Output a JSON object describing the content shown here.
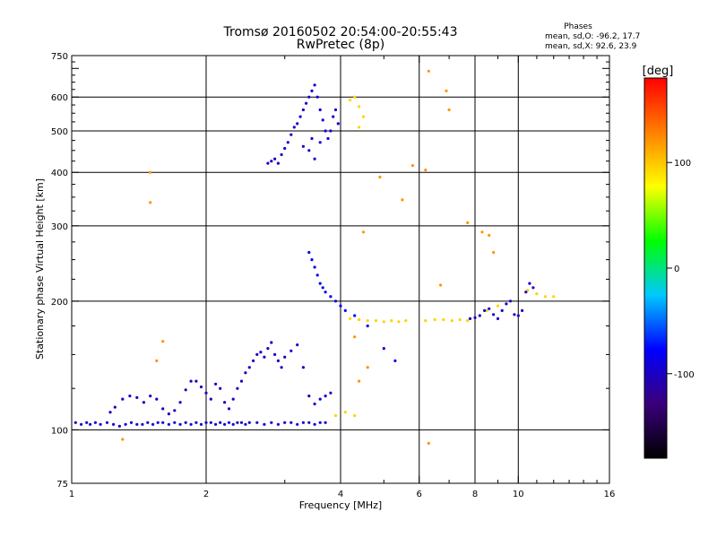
{
  "chart_data": {
    "type": "scatter",
    "title": "Tromsø 20160502 20:54:00-20:55:43",
    "subtitle": "RwPretec (8p)",
    "stats_title": "Phases",
    "stats": [
      "mean, sd,O: -96.2, 17.7",
      "mean, sd,X:  92.6, 23.9"
    ],
    "xlabel": "Frequency [MHz]",
    "ylabel": "Stationary phase Virtual Height [km]",
    "x_scale": "log",
    "y_scale": "log",
    "xlim": [
      1,
      16
    ],
    "ylim": [
      75,
      750
    ],
    "x_ticks": [
      1,
      2,
      4,
      6,
      8,
      10,
      16
    ],
    "x_tick_labels": [
      "1",
      "2",
      "4",
      "6",
      "8",
      "10",
      "16"
    ],
    "y_ticks": [
      75,
      100,
      200,
      300,
      400,
      500,
      600,
      750
    ],
    "y_tick_labels": [
      "75",
      "100",
      "200",
      "300",
      "400",
      "500",
      "600",
      "750"
    ],
    "x_gridlines": [
      2,
      4,
      6,
      8,
      10
    ],
    "y_gridlines": [
      100,
      200,
      300,
      400,
      500,
      600
    ],
    "grid": true,
    "colorbar": {
      "label": "[deg]",
      "range": [
        -180,
        180
      ],
      "ticks": [
        100,
        0,
        -100
      ],
      "tick_labels": [
        "100",
        "0",
        "-100"
      ],
      "colors": [
        "#000000",
        "#3a007a",
        "#0000ff",
        "#00c8ff",
        "#00ff00",
        "#ffff00",
        "#ff8000",
        "#ff0000"
      ]
    },
    "series": [
      {
        "phase_deg": -96,
        "points": [
          [
            1.02,
            104
          ],
          [
            1.05,
            103
          ],
          [
            1.08,
            104
          ],
          [
            1.1,
            103
          ],
          [
            1.13,
            104
          ],
          [
            1.16,
            103
          ],
          [
            1.2,
            104
          ],
          [
            1.24,
            103
          ],
          [
            1.28,
            102
          ],
          [
            1.32,
            103
          ],
          [
            1.36,
            104
          ],
          [
            1.4,
            103
          ],
          [
            1.44,
            103
          ],
          [
            1.48,
            104
          ],
          [
            1.52,
            103
          ],
          [
            1.56,
            104
          ],
          [
            1.6,
            104
          ],
          [
            1.65,
            103
          ],
          [
            1.7,
            104
          ],
          [
            1.75,
            103
          ],
          [
            1.8,
            104
          ],
          [
            1.85,
            103
          ],
          [
            1.9,
            104
          ],
          [
            1.95,
            103
          ],
          [
            2.0,
            104
          ],
          [
            2.05,
            104
          ],
          [
            2.1,
            103
          ],
          [
            2.15,
            104
          ],
          [
            2.2,
            103
          ],
          [
            2.25,
            104
          ],
          [
            2.3,
            103
          ],
          [
            2.35,
            104
          ],
          [
            2.4,
            104
          ],
          [
            2.45,
            103
          ],
          [
            2.5,
            104
          ],
          [
            2.6,
            104
          ],
          [
            2.7,
            103
          ],
          [
            2.8,
            104
          ],
          [
            2.9,
            103
          ],
          [
            3.0,
            104
          ],
          [
            3.1,
            104
          ],
          [
            3.2,
            103
          ],
          [
            3.3,
            104
          ],
          [
            3.4,
            104
          ],
          [
            3.5,
            103
          ],
          [
            3.6,
            104
          ],
          [
            3.7,
            104
          ]
        ]
      },
      {
        "phase_deg": -100,
        "points": [
          [
            1.22,
            110
          ],
          [
            1.25,
            113
          ],
          [
            1.3,
            118
          ],
          [
            1.35,
            120
          ],
          [
            1.4,
            119
          ],
          [
            1.45,
            116
          ],
          [
            1.5,
            120
          ],
          [
            1.55,
            118
          ],
          [
            1.6,
            112
          ],
          [
            1.65,
            109
          ],
          [
            1.7,
            111
          ],
          [
            1.75,
            116
          ],
          [
            1.8,
            124
          ],
          [
            1.85,
            130
          ],
          [
            1.9,
            130
          ],
          [
            1.95,
            126
          ],
          [
            2.0,
            122
          ],
          [
            2.05,
            118
          ],
          [
            2.1,
            128
          ],
          [
            2.15,
            125
          ],
          [
            2.2,
            116
          ],
          [
            2.25,
            112
          ],
          [
            2.3,
            118
          ],
          [
            2.35,
            125
          ],
          [
            2.4,
            130
          ],
          [
            2.45,
            136
          ],
          [
            2.5,
            140
          ],
          [
            2.55,
            145
          ],
          [
            2.6,
            150
          ],
          [
            2.65,
            152
          ],
          [
            2.7,
            148
          ],
          [
            2.75,
            155
          ],
          [
            2.8,
            160
          ],
          [
            2.85,
            150
          ],
          [
            2.9,
            145
          ],
          [
            2.95,
            140
          ],
          [
            3.0,
            148
          ],
          [
            3.1,
            153
          ],
          [
            3.2,
            158
          ],
          [
            3.3,
            140
          ],
          [
            3.4,
            120
          ],
          [
            3.5,
            115
          ],
          [
            3.6,
            118
          ],
          [
            3.7,
            120
          ],
          [
            3.8,
            122
          ]
        ]
      },
      {
        "phase_deg": -95,
        "points": [
          [
            2.75,
            420
          ],
          [
            2.8,
            425
          ],
          [
            2.85,
            430
          ],
          [
            2.9,
            420
          ],
          [
            2.95,
            440
          ],
          [
            3.0,
            455
          ],
          [
            3.05,
            470
          ],
          [
            3.1,
            490
          ],
          [
            3.15,
            510
          ],
          [
            3.2,
            520
          ],
          [
            3.25,
            540
          ],
          [
            3.3,
            560
          ],
          [
            3.35,
            580
          ],
          [
            3.4,
            600
          ],
          [
            3.45,
            620
          ],
          [
            3.5,
            640
          ],
          [
            3.55,
            600
          ],
          [
            3.6,
            560
          ],
          [
            3.65,
            530
          ],
          [
            3.7,
            500
          ],
          [
            3.75,
            480
          ],
          [
            3.8,
            500
          ],
          [
            3.85,
            540
          ],
          [
            3.9,
            560
          ],
          [
            3.95,
            520
          ],
          [
            3.3,
            460
          ],
          [
            3.4,
            450
          ],
          [
            3.5,
            430
          ],
          [
            3.45,
            480
          ],
          [
            3.6,
            470
          ]
        ]
      },
      {
        "phase_deg": -80,
        "points": [
          [
            3.4,
            260
          ],
          [
            3.45,
            250
          ],
          [
            3.5,
            240
          ],
          [
            3.55,
            230
          ],
          [
            3.6,
            220
          ],
          [
            3.65,
            215
          ],
          [
            3.7,
            210
          ],
          [
            3.8,
            205
          ],
          [
            3.9,
            200
          ],
          [
            4.0,
            195
          ],
          [
            4.1,
            190
          ],
          [
            4.3,
            185
          ],
          [
            4.6,
            175
          ],
          [
            5.0,
            155
          ],
          [
            5.3,
            145
          ]
        ]
      },
      {
        "phase_deg": 95,
        "points": [
          [
            4.2,
            182
          ],
          [
            4.4,
            181
          ],
          [
            4.6,
            180
          ],
          [
            4.8,
            180
          ],
          [
            5.0,
            179
          ],
          [
            5.2,
            180
          ],
          [
            5.4,
            179
          ],
          [
            5.6,
            180
          ],
          [
            6.2,
            180
          ],
          [
            6.5,
            181
          ],
          [
            6.8,
            181
          ],
          [
            7.1,
            180
          ],
          [
            7.4,
            181
          ],
          [
            7.7,
            180
          ],
          [
            8.5,
            190
          ],
          [
            9.0,
            195
          ],
          [
            10.5,
            212
          ],
          [
            11.0,
            208
          ],
          [
            11.5,
            205
          ],
          [
            12.0,
            205
          ],
          [
            4.2,
            590
          ],
          [
            4.3,
            600
          ],
          [
            4.4,
            570
          ],
          [
            4.5,
            540
          ],
          [
            4.4,
            510
          ],
          [
            3.9,
            108
          ],
          [
            4.1,
            110
          ],
          [
            4.3,
            108
          ]
        ]
      },
      {
        "phase_deg": -100,
        "points": [
          [
            7.8,
            182
          ],
          [
            8.0,
            183
          ],
          [
            8.2,
            185
          ],
          [
            8.4,
            190
          ],
          [
            8.6,
            192
          ],
          [
            8.8,
            186
          ],
          [
            9.0,
            182
          ],
          [
            9.2,
            190
          ],
          [
            9.4,
            197
          ],
          [
            9.6,
            200
          ],
          [
            9.8,
            186
          ],
          [
            10.0,
            185
          ],
          [
            10.2,
            190
          ],
          [
            10.4,
            210
          ],
          [
            10.6,
            220
          ],
          [
            10.8,
            215
          ]
        ]
      },
      {
        "phase_deg": 120,
        "points": [
          [
            4.9,
            390
          ],
          [
            5.5,
            345
          ],
          [
            5.8,
            415
          ],
          [
            6.2,
            405
          ],
          [
            6.3,
            690
          ],
          [
            6.9,
            620
          ],
          [
            7.0,
            560
          ],
          [
            7.7,
            305
          ],
          [
            8.3,
            290
          ],
          [
            8.6,
            285
          ],
          [
            8.8,
            260
          ],
          [
            6.7,
            218
          ],
          [
            4.5,
            290
          ],
          [
            4.3,
            165
          ],
          [
            4.4,
            130
          ],
          [
            4.6,
            140
          ],
          [
            6.3,
            93
          ],
          [
            1.3,
            95
          ],
          [
            1.5,
            400
          ],
          [
            1.5,
            340
          ],
          [
            1.6,
            161
          ],
          [
            1.55,
            145
          ]
        ]
      }
    ]
  }
}
